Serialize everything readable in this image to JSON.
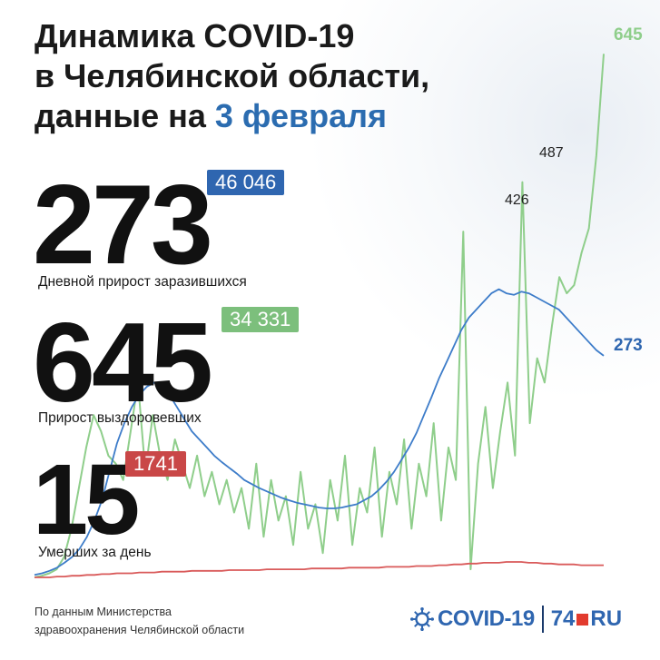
{
  "header": {
    "line1": "Динамика COVID-19",
    "line2": "в Челябинской области,",
    "line3_prefix": "данные на ",
    "line3_date": "3 февраля"
  },
  "stats": {
    "cases": {
      "value": "273",
      "total": "46 046",
      "caption": "Дневной прирост заразившихся"
    },
    "recovered": {
      "value": "645",
      "total": "34 331",
      "caption": "Прирост выздоровевших"
    },
    "deaths": {
      "value": "15",
      "total": "1741",
      "caption": "Умерших за день"
    }
  },
  "colors": {
    "cases": "#3d7cc9",
    "recovered": "#8fce8b",
    "deaths": "#d95a5a",
    "cases_badge": "#2f66b0",
    "recovered_badge": "#7cbf7c",
    "deaths_badge": "#c94747",
    "accent": "#2b6cb0"
  },
  "chart_data": {
    "type": "line",
    "title": "Динамика COVID-19",
    "xlabel": "",
    "ylabel": "",
    "grid": false,
    "axes_visible": false,
    "ylim": [
      0,
      680
    ],
    "annotations": [
      {
        "label": "426",
        "series": "recovered",
        "value": 426
      },
      {
        "label": "487",
        "series": "recovered",
        "value": 487
      },
      {
        "label": "645",
        "series": "recovered",
        "value": 645,
        "position": "last"
      },
      {
        "label": "273",
        "series": "cases",
        "value": 273,
        "position": "last"
      }
    ],
    "series": [
      {
        "key": "cases",
        "values": [
          3,
          5,
          8,
          12,
          18,
          25,
          35,
          50,
          70,
          95,
          130,
          165,
          190,
          210,
          225,
          235,
          240,
          235,
          225,
          210,
          195,
          180,
          170,
          160,
          150,
          142,
          135,
          128,
          120,
          115,
          110,
          106,
          102,
          98,
          95,
          92,
          90,
          88,
          86,
          85,
          85,
          86,
          88,
          90,
          95,
          100,
          108,
          118,
          130,
          145,
          160,
          178,
          200,
          222,
          245,
          265,
          285,
          305,
          320,
          330,
          340,
          350,
          355,
          350,
          348,
          352,
          350,
          345,
          340,
          335,
          330,
          320,
          310,
          300,
          290,
          280,
          273
        ]
      },
      {
        "key": "recovered",
        "values": [
          0,
          2,
          5,
          10,
          25,
          60,
          110,
          160,
          200,
          180,
          150,
          140,
          120,
          180,
          240,
          130,
          200,
          150,
          120,
          170,
          140,
          110,
          150,
          100,
          130,
          90,
          120,
          80,
          110,
          60,
          140,
          50,
          120,
          70,
          100,
          40,
          130,
          60,
          90,
          30,
          120,
          70,
          150,
          40,
          110,
          80,
          160,
          50,
          130,
          90,
          170,
          60,
          140,
          100,
          190,
          70,
          160,
          120,
          426,
          10,
          140,
          210,
          110,
          180,
          240,
          150,
          487,
          190,
          270,
          240,
          310,
          370,
          350,
          360,
          400,
          430,
          520,
          645
        ]
      },
      {
        "key": "deaths",
        "values": [
          0,
          0,
          0,
          1,
          1,
          2,
          2,
          3,
          3,
          4,
          4,
          5,
          5,
          5,
          6,
          6,
          6,
          7,
          7,
          7,
          7,
          8,
          8,
          8,
          8,
          8,
          9,
          9,
          9,
          9,
          9,
          10,
          10,
          10,
          10,
          10,
          10,
          11,
          11,
          11,
          11,
          11,
          12,
          12,
          12,
          12,
          12,
          13,
          13,
          13,
          13,
          14,
          14,
          14,
          15,
          15,
          16,
          16,
          17,
          17,
          18,
          18,
          18,
          19,
          19,
          19,
          18,
          18,
          17,
          17,
          16,
          16,
          16,
          15,
          15,
          15,
          15
        ]
      }
    ]
  }
}
